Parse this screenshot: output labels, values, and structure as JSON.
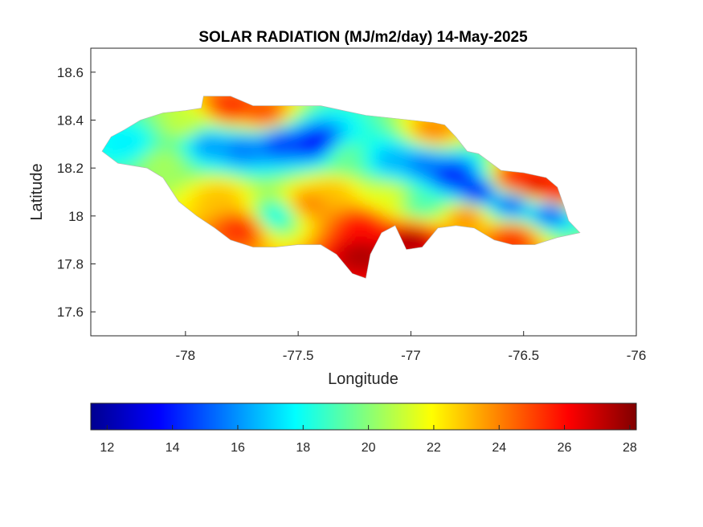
{
  "chart_data": {
    "type": "heatmap",
    "title": "SOLAR RADIATION (MJ/m2/day) 14-May-2025",
    "xlabel": "Longitude",
    "ylabel": "Latitude",
    "xlim": [
      -78.42,
      -76.0
    ],
    "ylim": [
      17.5,
      18.7
    ],
    "xticks": [
      -78,
      -77.5,
      -77,
      -76.5,
      -76
    ],
    "xtick_labels": [
      "-78",
      "-77.5",
      "-77",
      "-76.5",
      "-76"
    ],
    "yticks": [
      17.6,
      17.8,
      18.0,
      18.2,
      18.4,
      18.6
    ],
    "ytick_labels": [
      "17.6",
      "17.8",
      "18",
      "18.2",
      "18.4",
      "18.6"
    ],
    "grid": false,
    "colormap": "jet",
    "colorbar": {
      "placement": "bottom",
      "range": [
        11.5,
        28.2
      ],
      "ticks": [
        12,
        14,
        16,
        18,
        20,
        22,
        24,
        26,
        28
      ],
      "tick_labels": [
        "12",
        "14",
        "16",
        "18",
        "20",
        "22",
        "24",
        "26",
        "28"
      ]
    },
    "region_outline": [
      [
        -78.37,
        18.27
      ],
      [
        -78.33,
        18.33
      ],
      [
        -78.27,
        18.36
      ],
      [
        -78.2,
        18.4
      ],
      [
        -78.1,
        18.43
      ],
      [
        -78.0,
        18.44
      ],
      [
        -77.93,
        18.45
      ],
      [
        -77.92,
        18.5
      ],
      [
        -77.8,
        18.5
      ],
      [
        -77.7,
        18.46
      ],
      [
        -77.6,
        18.46
      ],
      [
        -77.5,
        18.46
      ],
      [
        -77.4,
        18.46
      ],
      [
        -77.3,
        18.44
      ],
      [
        -77.2,
        18.42
      ],
      [
        -77.1,
        18.41
      ],
      [
        -77.0,
        18.4
      ],
      [
        -76.9,
        18.39
      ],
      [
        -76.85,
        18.38
      ],
      [
        -76.8,
        18.33
      ],
      [
        -76.75,
        18.27
      ],
      [
        -76.7,
        18.26
      ],
      [
        -76.6,
        18.19
      ],
      [
        -76.5,
        18.18
      ],
      [
        -76.4,
        18.16
      ],
      [
        -76.35,
        18.12
      ],
      [
        -76.32,
        18.04
      ],
      [
        -76.3,
        17.98
      ],
      [
        -76.25,
        17.93
      ],
      [
        -76.35,
        17.91
      ],
      [
        -76.45,
        17.88
      ],
      [
        -76.55,
        17.88
      ],
      [
        -76.63,
        17.9
      ],
      [
        -76.72,
        17.95
      ],
      [
        -76.8,
        17.96
      ],
      [
        -76.88,
        17.95
      ],
      [
        -76.95,
        17.87
      ],
      [
        -77.02,
        17.86
      ],
      [
        -77.07,
        17.96
      ],
      [
        -77.13,
        17.93
      ],
      [
        -77.18,
        17.84
      ],
      [
        -77.2,
        17.74
      ],
      [
        -77.26,
        17.76
      ],
      [
        -77.33,
        17.84
      ],
      [
        -77.4,
        17.88
      ],
      [
        -77.5,
        17.88
      ],
      [
        -77.6,
        17.87
      ],
      [
        -77.7,
        17.87
      ],
      [
        -77.8,
        17.9
      ],
      [
        -77.87,
        17.95
      ],
      [
        -77.95,
        18.0
      ],
      [
        -78.03,
        18.06
      ],
      [
        -78.1,
        18.16
      ],
      [
        -78.17,
        18.2
      ],
      [
        -78.3,
        18.22
      ],
      [
        -78.37,
        18.27
      ]
    ],
    "value_hotspots": [
      {
        "lon": -77.42,
        "lat": 18.3,
        "value": 13.5
      },
      {
        "lon": -77.58,
        "lat": 18.31,
        "value": 14.5
      },
      {
        "lon": -77.75,
        "lat": 18.28,
        "value": 15.5
      },
      {
        "lon": -77.9,
        "lat": 18.3,
        "value": 16.0
      },
      {
        "lon": -76.82,
        "lat": 18.17,
        "value": 14.0
      },
      {
        "lon": -76.7,
        "lat": 18.1,
        "value": 13.5
      },
      {
        "lon": -76.55,
        "lat": 18.05,
        "value": 14.5
      },
      {
        "lon": -76.38,
        "lat": 18.02,
        "value": 14.0
      },
      {
        "lon": -77.08,
        "lat": 18.23,
        "value": 16.5
      },
      {
        "lon": -76.95,
        "lat": 18.22,
        "value": 15.5
      },
      {
        "lon": -76.45,
        "lat": 18.12,
        "value": 27.0
      },
      {
        "lon": -76.55,
        "lat": 18.15,
        "value": 26.0
      },
      {
        "lon": -76.35,
        "lat": 18.08,
        "value": 26.0
      },
      {
        "lon": -77.22,
        "lat": 17.84,
        "value": 27.5
      },
      {
        "lon": -77.22,
        "lat": 17.96,
        "value": 26.0
      },
      {
        "lon": -77.0,
        "lat": 17.9,
        "value": 27.5
      },
      {
        "lon": -77.8,
        "lat": 18.45,
        "value": 25.5
      },
      {
        "lon": -77.65,
        "lat": 18.42,
        "value": 25.0
      },
      {
        "lon": -76.55,
        "lat": 17.91,
        "value": 25.5
      },
      {
        "lon": -77.75,
        "lat": 17.95,
        "value": 25.5
      },
      {
        "lon": -77.85,
        "lat": 18.08,
        "value": 23.0
      },
      {
        "lon": -77.45,
        "lat": 18.05,
        "value": 24.0
      },
      {
        "lon": -77.35,
        "lat": 18.1,
        "value": 23.0
      },
      {
        "lon": -76.9,
        "lat": 18.35,
        "value": 24.0
      },
      {
        "lon": -76.75,
        "lat": 18.0,
        "value": 24.0
      },
      {
        "lon": -78.25,
        "lat": 18.3,
        "value": 17.5
      },
      {
        "lon": -78.1,
        "lat": 18.22,
        "value": 20.5
      },
      {
        "lon": -77.3,
        "lat": 18.25,
        "value": 19.5
      },
      {
        "lon": -77.6,
        "lat": 18.0,
        "value": 18.0
      },
      {
        "lon": -76.95,
        "lat": 18.05,
        "value": 19.0
      },
      {
        "lon": -77.1,
        "lat": 18.08,
        "value": 21.5
      },
      {
        "lon": -78.0,
        "lat": 18.38,
        "value": 21.0
      }
    ]
  }
}
